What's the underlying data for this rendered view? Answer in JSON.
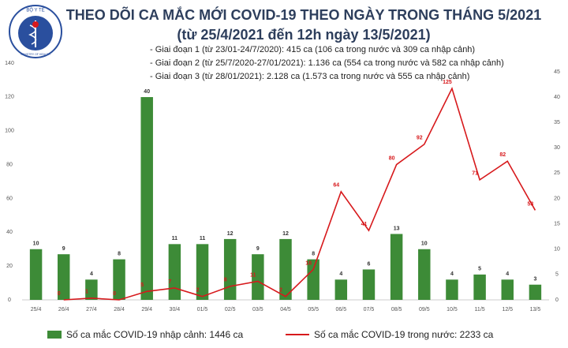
{
  "logo": {
    "top": "BỘ Y TẾ",
    "bottom": "MINISTRY OF HEALTH"
  },
  "chart_data": {
    "type": "combo",
    "title": "THEO DÕI CA MẮC MỚI COVID-19 THEO NGÀY TRONG THÁNG 5/2021",
    "subtitle": "(từ 25/4/2021 đến 12h ngày 13/5/2021)",
    "annotations": [
      "- Giai đoạn 1 (từ 23/01-24/7/2020): 415 ca (106 ca trong nước và 309 ca nhập cảnh)",
      "- Giai đoạn 2 (từ 25/7/2020-27/01/2021): 1.136 ca (554 ca trong nước và 582 ca nhập cảnh)",
      "- Giai đoạn 3 (từ 28/01/2021): 2.128 ca (1.573 ca trong nước và 555 ca nhập cảnh)"
    ],
    "categories": [
      "25/4",
      "26/4",
      "27/4",
      "28/4",
      "29/4",
      "30/4",
      "01/5",
      "02/5",
      "03/5",
      "04/5",
      "05/5",
      "06/5",
      "07/5",
      "08/5",
      "09/5",
      "10/5",
      "11/5",
      "12/5",
      "13/5"
    ],
    "series": [
      {
        "name": "Số ca mắc COVID-19 nhập cảnh: 1446 ca",
        "type": "bar",
        "axis": "y2",
        "color": "#3d8b37",
        "values": [
          10,
          9,
          4,
          8,
          40,
          11,
          11,
          12,
          9,
          12,
          8,
          4,
          6,
          13,
          10,
          4,
          5,
          4,
          3
        ]
      },
      {
        "name": "Số ca mắc COVID-19 trong nước: 2233 ca",
        "type": "line",
        "color": "#d7191c",
        "values": [
          null,
          0,
          1,
          0,
          5,
          7,
          2,
          8,
          11,
          2,
          18,
          64,
          41,
          80,
          92,
          125,
          71,
          82,
          53
        ]
      }
    ],
    "ylim": [
      0,
      140
    ],
    "yticks": [
      0,
      20,
      40,
      60,
      80,
      100,
      120,
      140
    ],
    "y2lim": [
      0,
      46.7
    ],
    "y2ticks": [
      0,
      5,
      10,
      15,
      20,
      25,
      30,
      35,
      40,
      45
    ]
  }
}
